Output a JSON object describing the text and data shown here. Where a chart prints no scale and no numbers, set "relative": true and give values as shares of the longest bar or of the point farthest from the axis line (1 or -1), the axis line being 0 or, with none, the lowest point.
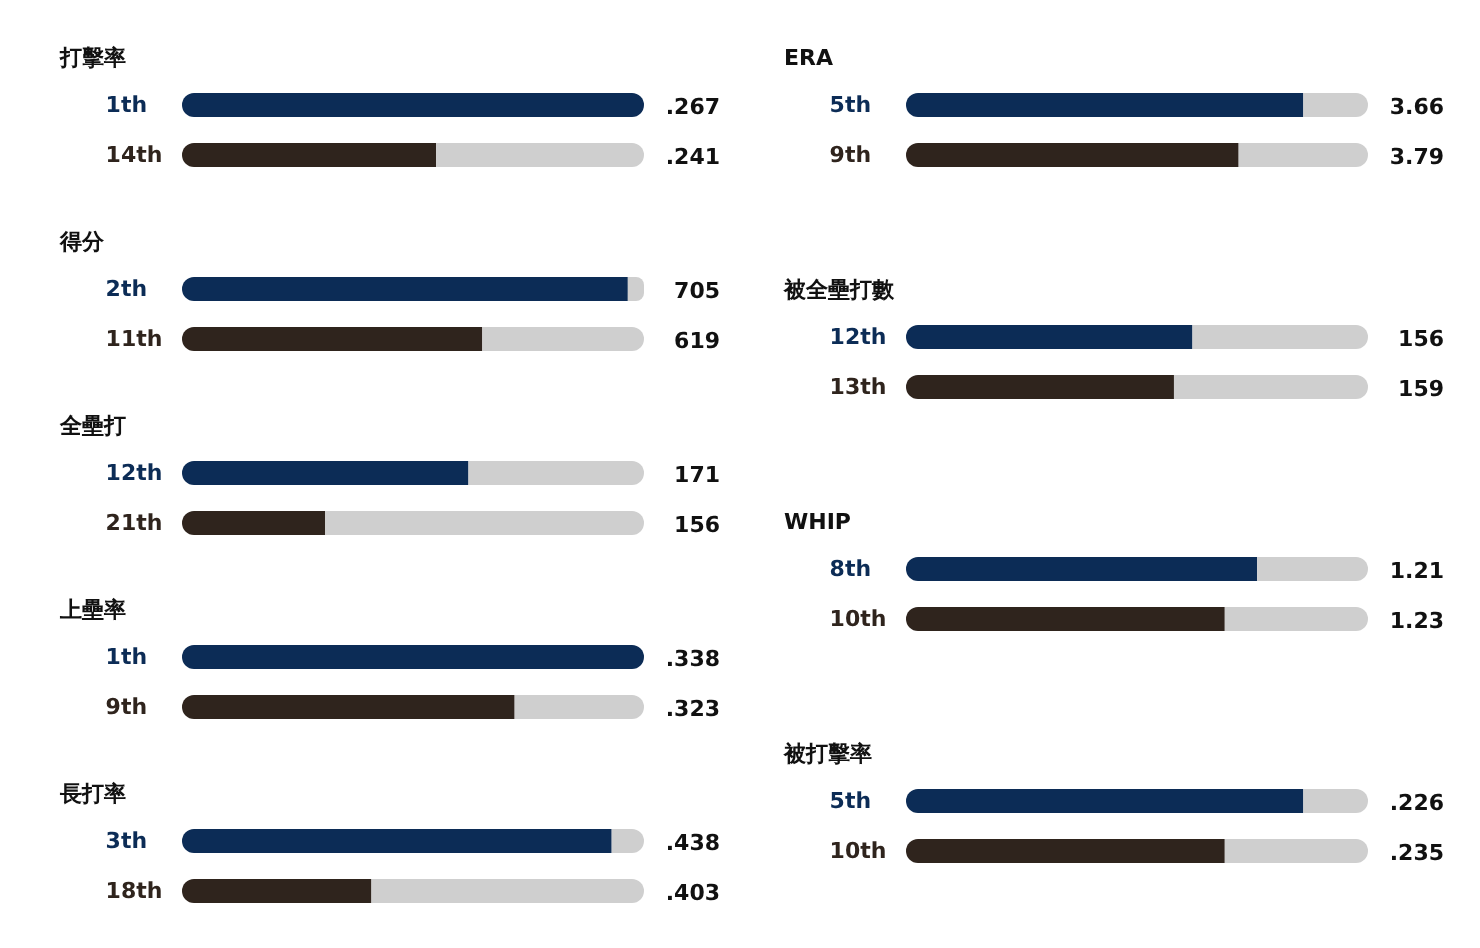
{
  "chart_data": [
    {
      "type": "bar",
      "orientation": "horizontal",
      "stacked": true,
      "relative": true,
      "title": "打擊率",
      "categories": [
        "1th",
        "14th"
      ],
      "series": [
        {
          "colors": [
            "#0c2c56",
            "#2f241d"
          ],
          "values": [
            1.0,
            0.55
          ]
        },
        {
          "color": "#cfcfcf",
          "values": [
            null,
            0.45
          ]
        }
      ],
      "annotations": [
        ".267",
        ".241"
      ]
    },
    {
      "type": "bar",
      "orientation": "horizontal",
      "stacked": true,
      "relative": true,
      "title": "得分",
      "categories": [
        "2th",
        "11th"
      ],
      "series": [
        {
          "colors": [
            "#0c2c56",
            "#2f241d"
          ],
          "values": [
            0.965,
            0.65
          ]
        },
        {
          "color": "#cfcfcf",
          "values": [
            0.035,
            0.35
          ]
        }
      ],
      "annotations": [
        "705",
        "619"
      ]
    },
    {
      "type": "bar",
      "orientation": "horizontal",
      "stacked": true,
      "relative": true,
      "title": "全壘打",
      "categories": [
        "12th",
        "21th"
      ],
      "series": [
        {
          "colors": [
            "#0c2c56",
            "#2f241d"
          ],
          "values": [
            0.62,
            0.31
          ]
        },
        {
          "color": "#cfcfcf",
          "values": [
            0.38,
            0.69
          ]
        }
      ],
      "annotations": [
        "171",
        "156"
      ]
    },
    {
      "type": "bar",
      "orientation": "horizontal",
      "stacked": true,
      "relative": true,
      "title": "上壘率",
      "categories": [
        "1th",
        "9th"
      ],
      "series": [
        {
          "colors": [
            "#0c2c56",
            "#2f241d"
          ],
          "values": [
            1.0,
            0.72
          ]
        },
        {
          "color": "#cfcfcf",
          "values": [
            null,
            0.28
          ]
        }
      ],
      "annotations": [
        ".338",
        ".323"
      ]
    },
    {
      "type": "bar",
      "orientation": "horizontal",
      "stacked": true,
      "relative": true,
      "title": "長打率",
      "categories": [
        "3th",
        "18th"
      ],
      "series": [
        {
          "colors": [
            "#0c2c56",
            "#2f241d"
          ],
          "values": [
            0.93,
            0.41
          ]
        },
        {
          "color": "#cfcfcf",
          "values": [
            0.07,
            0.59
          ]
        }
      ],
      "annotations": [
        ".438",
        ".403"
      ]
    },
    {
      "type": "bar",
      "orientation": "horizontal",
      "stacked": true,
      "relative": true,
      "title": "ERA",
      "categories": [
        "5th",
        "9th"
      ],
      "series": [
        {
          "colors": [
            "#0c2c56",
            "#2f241d"
          ],
          "values": [
            0.86,
            0.72
          ]
        },
        {
          "color": "#cfcfcf",
          "values": [
            0.14,
            0.28
          ]
        }
      ],
      "annotations": [
        "3.66",
        "3.79"
      ]
    },
    {
      "type": "bar",
      "orientation": "horizontal",
      "stacked": true,
      "relative": true,
      "title": "被全壘打數",
      "categories": [
        "12th",
        "13th"
      ],
      "series": [
        {
          "colors": [
            "#0c2c56",
            "#2f241d"
          ],
          "values": [
            0.62,
            0.58
          ]
        },
        {
          "color": "#cfcfcf",
          "values": [
            0.38,
            0.42
          ]
        }
      ],
      "annotations": [
        "156",
        "159"
      ]
    },
    {
      "type": "bar",
      "orientation": "horizontal",
      "stacked": true,
      "relative": true,
      "title": "WHIP",
      "categories": [
        "8th",
        "10th"
      ],
      "series": [
        {
          "colors": [
            "#0c2c56",
            "#2f241d"
          ],
          "values": [
            0.76,
            0.69
          ]
        },
        {
          "color": "#cfcfcf",
          "values": [
            0.24,
            0.31
          ]
        }
      ],
      "annotations": [
        "1.21",
        "1.23"
      ]
    },
    {
      "type": "bar",
      "orientation": "horizontal",
      "stacked": true,
      "relative": true,
      "title": "被打擊率",
      "categories": [
        "5th",
        "10th"
      ],
      "series": [
        {
          "colors": [
            "#0c2c56",
            "#2f241d"
          ],
          "values": [
            0.86,
            0.69
          ]
        },
        {
          "color": "#cfcfcf",
          "values": [
            0.14,
            0.31
          ]
        }
      ],
      "annotations": [
        ".226",
        ".235"
      ]
    }
  ]
}
